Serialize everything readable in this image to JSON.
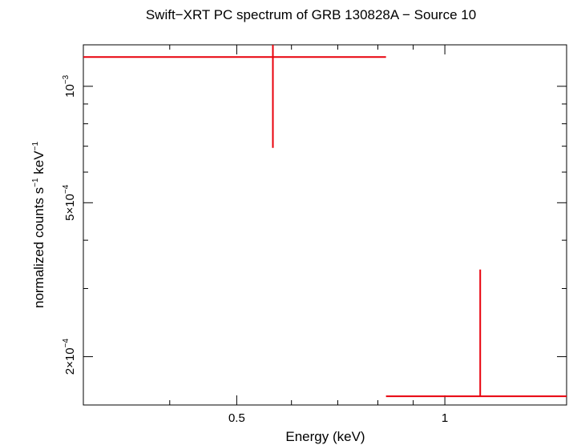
{
  "chart_data": {
    "type": "scatter",
    "title": "Swift−XRT PC spectrum of GRB 130828A − Source 10",
    "xlabel": "Energy (keV)",
    "ylabel_main": "normalized counts s",
    "ylabel_sup1": "−1",
    "ylabel_mid": " keV",
    "ylabel_sup2": "−1",
    "x_scale": "log",
    "y_scale": "log",
    "xlim": [
      0.3,
      1.5
    ],
    "ylim": [
      0.00015,
      0.00128
    ],
    "x_ticks": [
      {
        "value": 0.5,
        "label": "0.5"
      },
      {
        "value": 1,
        "label": "1"
      }
    ],
    "y_ticks": [
      {
        "value": 0.001,
        "base": "10",
        "exp": "−3"
      },
      {
        "value": 0.0005,
        "base": "5×10",
        "exp": "−4"
      },
      {
        "value": 0.0002,
        "base": "2×10",
        "exp": "−4"
      }
    ],
    "series": [
      {
        "color": "#e8000b",
        "points": [
          {
            "x": 0.564,
            "xlo": 0.3,
            "xhi": 0.822,
            "y": 0.00119,
            "ylo": 0.000693,
            "yhi": 0.0013
          },
          {
            "x": 1.125,
            "xlo": 0.822,
            "xhi": 1.5,
            "y": 0.000158,
            "ylo": 0.000158,
            "yhi": 0.000336
          }
        ]
      }
    ],
    "grid": false
  }
}
